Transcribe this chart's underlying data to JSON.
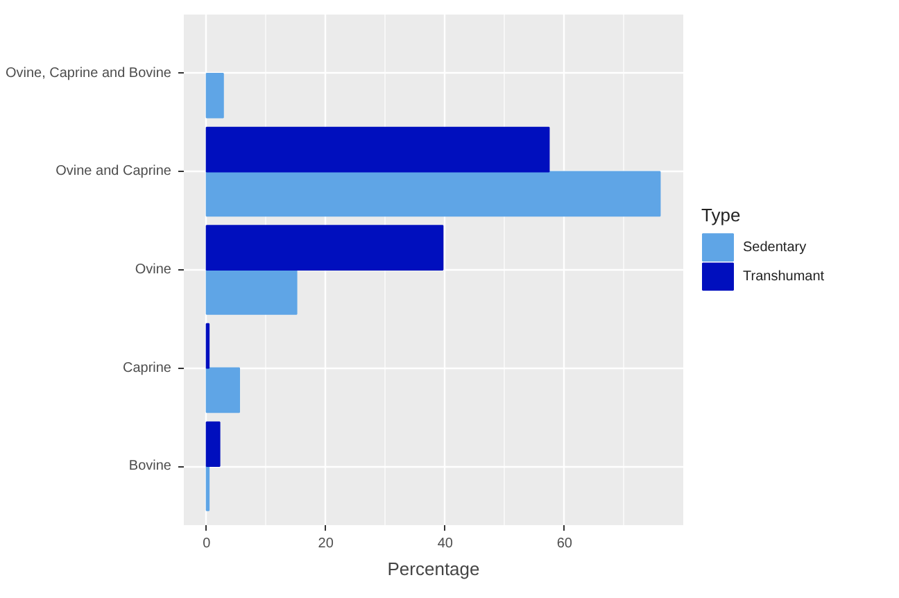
{
  "chart_data": {
    "type": "bar",
    "orientation": "horizontal",
    "xlabel": "Percentage",
    "legend_title": "Type",
    "categories": [
      "Ovine, Caprine and Bovine",
      "Ovine and Caprine",
      "Ovine",
      "Caprine",
      "Bovine"
    ],
    "series": [
      {
        "name": "Sedentary",
        "color": "#5fa5e6",
        "values": [
          2.8,
          76.0,
          15.1,
          5.5,
          0.4
        ]
      },
      {
        "name": "Transhumant",
        "color": "#000fbe",
        "values": [
          null,
          57.4,
          39.6,
          0.4,
          2.2
        ]
      }
    ],
    "xlim": [
      -3.8,
      79.9
    ],
    "xticks": [
      0,
      20,
      40,
      60
    ],
    "grid": true,
    "legend": "right"
  }
}
